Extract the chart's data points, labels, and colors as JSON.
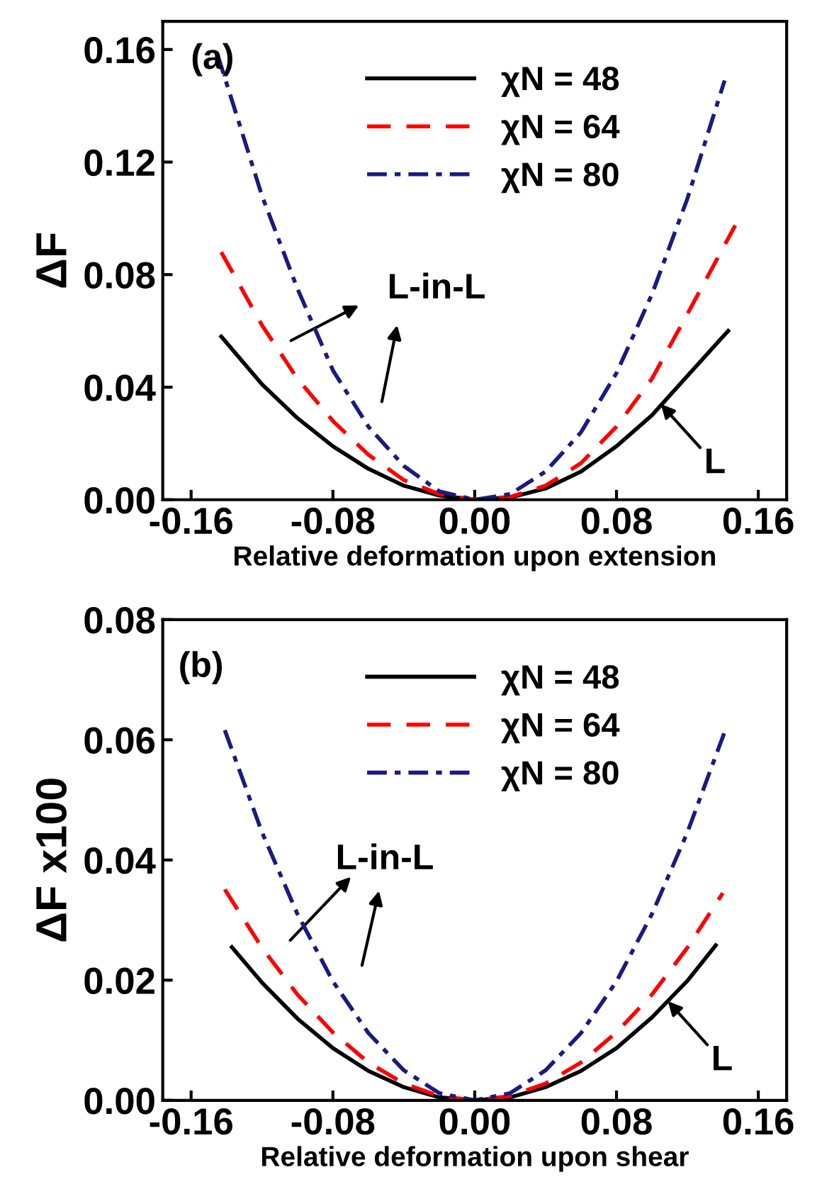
{
  "chart_data": [
    {
      "type": "line",
      "xlabel": "Relative deformation upon extension",
      "ylabel": "ΔF",
      "xlim": [
        -0.176,
        0.176
      ],
      "ylim": [
        0,
        0.17
      ],
      "xticks": [
        -0.16,
        -0.08,
        {
          "value": 0,
          "label": "0.00"
        },
        0.08,
        0.16
      ],
      "yticks": [
        {
          "value": 0,
          "label": "0.00"
        },
        0.04,
        0.08,
        0.12,
        0.16
      ],
      "legend": "top",
      "grid": false,
      "marker": "none",
      "annotations": [
        "(a)",
        "L-in-L",
        {
          "text": "L",
          "x": 0.105,
          "y": 0.034
        }
      ],
      "series": [
        {
          "name": "χN = 48",
          "color": "#000000",
          "line_style": "solid",
          "x": [
            -0.143,
            -0.12,
            -0.1,
            -0.08,
            -0.06,
            -0.04,
            -0.02,
            0,
            0.02,
            0.04,
            0.06,
            0.08,
            0.1,
            0.12,
            0.143
          ],
          "values": [
            0.058,
            0.041,
            0.029,
            0.019,
            0.011,
            0.005,
            0.0015,
            0,
            0.0008,
            0.004,
            0.01,
            0.019,
            0.03,
            0.044,
            0.06
          ]
        },
        {
          "name": "χN = 64",
          "color": "#ff0000",
          "line_style": "dashed",
          "x": [
            -0.143,
            -0.12,
            -0.1,
            -0.08,
            -0.06,
            -0.04,
            -0.02,
            0,
            0.02,
            0.04,
            0.06,
            0.08,
            0.1,
            0.12,
            0.147
          ],
          "values": [
            0.088,
            0.062,
            0.043,
            0.028,
            0.016,
            0.007,
            0.002,
            0,
            0.001,
            0.005,
            0.013,
            0.026,
            0.043,
            0.066,
            0.0975
          ]
        },
        {
          "name": "χN = 80",
          "color": "#1a1a80",
          "line_style": "dashdot",
          "x": [
            -0.145,
            -0.12,
            -0.1,
            -0.08,
            -0.06,
            -0.04,
            -0.02,
            0,
            0.02,
            0.04,
            0.06,
            0.08,
            0.1,
            0.12,
            0.141
          ],
          "values": [
            0.158,
            0.108,
            0.075,
            0.046,
            0.026,
            0.012,
            0.003,
            0,
            0.002,
            0.01,
            0.024,
            0.045,
            0.073,
            0.107,
            0.149
          ]
        }
      ]
    },
    {
      "type": "line",
      "xlabel": "Relative deformation upon shear",
      "ylabel": "ΔF x100",
      "xlim": [
        -0.176,
        0.176
      ],
      "ylim": [
        0,
        0.08
      ],
      "xticks": [
        -0.16,
        -0.08,
        {
          "value": 0,
          "label": "0.00"
        },
        0.08,
        0.16
      ],
      "yticks": [
        {
          "value": 0,
          "label": "0.00"
        },
        0.02,
        0.04,
        0.06,
        0.08
      ],
      "legend": "top",
      "grid": false,
      "marker": "none",
      "annotations": [
        "(b)",
        "L-in-L",
        {
          "text": "L",
          "x": 0.109,
          "y": 0.0165
        }
      ],
      "series": [
        {
          "name": "χN = 48",
          "color": "#000000",
          "line_style": "solid",
          "x": [
            -0.137,
            -0.12,
            -0.1,
            -0.08,
            -0.06,
            -0.04,
            -0.02,
            0,
            0.02,
            0.04,
            0.06,
            0.08,
            0.1,
            0.12,
            0.136
          ],
          "values": [
            0.0255,
            0.0196,
            0.0136,
            0.0087,
            0.0049,
            0.0022,
            0.0005,
            0,
            0.0005,
            0.0022,
            0.0049,
            0.0087,
            0.0138,
            0.0199,
            0.0258
          ]
        },
        {
          "name": "χN = 64",
          "color": "#ff0000",
          "line_style": "dashed",
          "x": [
            -0.141,
            -0.12,
            -0.1,
            -0.08,
            -0.06,
            -0.04,
            -0.02,
            0,
            0.02,
            0.04,
            0.06,
            0.08,
            0.1,
            0.12,
            0.14
          ],
          "values": [
            0.0351,
            0.0254,
            0.0176,
            0.0113,
            0.0063,
            0.0028,
            0.0007,
            0,
            0.0007,
            0.0028,
            0.0063,
            0.0113,
            0.0176,
            0.0254,
            0.0345
          ]
        },
        {
          "name": "χN = 80",
          "color": "#1a1a80",
          "line_style": "dashdot",
          "x": [
            -0.141,
            -0.12,
            -0.1,
            -0.08,
            -0.06,
            -0.04,
            -0.02,
            0,
            0.02,
            0.04,
            0.06,
            0.08,
            0.1,
            0.12,
            0.141
          ],
          "values": [
            0.0616,
            0.0446,
            0.031,
            0.0198,
            0.0112,
            0.005,
            0.0012,
            0,
            0.0012,
            0.005,
            0.0112,
            0.0198,
            0.031,
            0.0446,
            0.0613
          ]
        }
      ]
    }
  ]
}
